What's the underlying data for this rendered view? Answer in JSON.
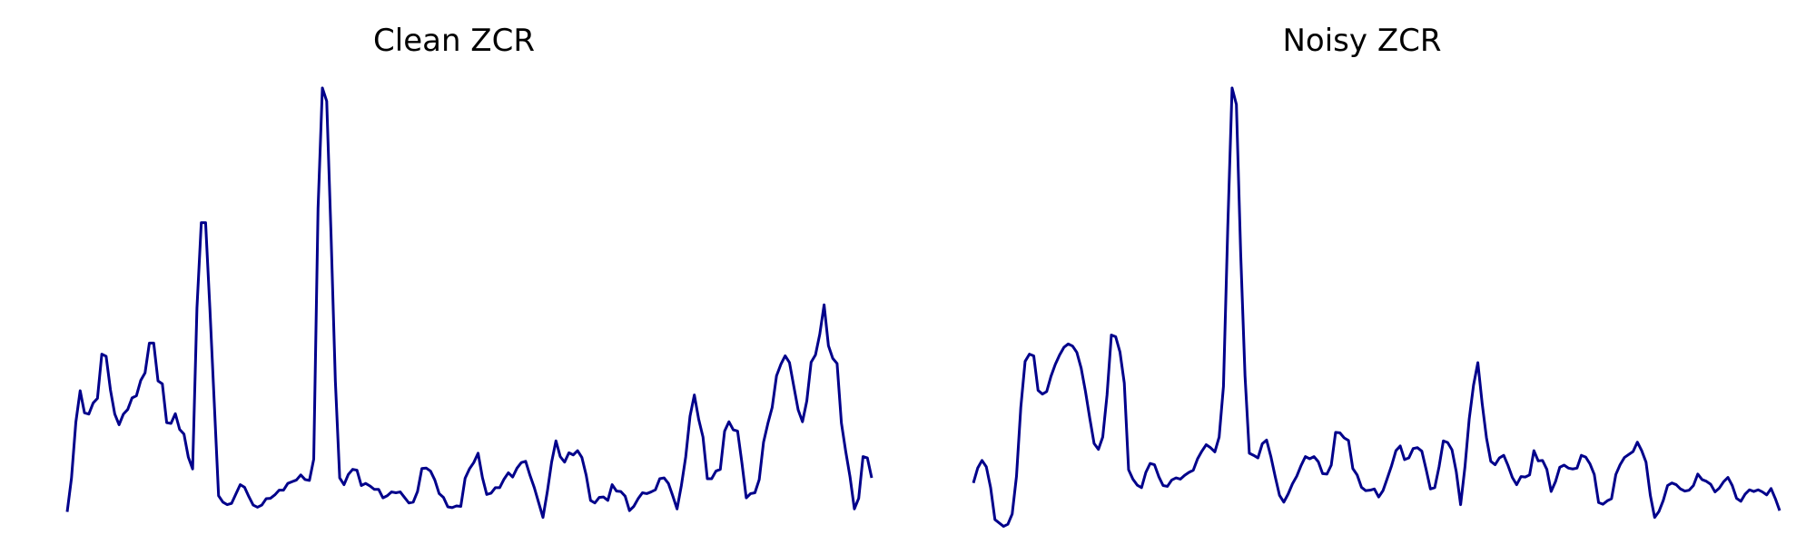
{
  "chart_data": [
    {
      "type": "line",
      "title": "Clean ZCR",
      "xlabel": "",
      "ylabel": "",
      "axes_visible": false,
      "grid": false,
      "ylim": [
        0,
        1
      ],
      "series": [
        {
          "color": "#00008B",
          "values": [
            0.003,
            0.083,
            0.214,
            0.288,
            0.236,
            0.233,
            0.259,
            0.27,
            0.374,
            0.369,
            0.29,
            0.233,
            0.208,
            0.233,
            0.244,
            0.271,
            0.276,
            0.312,
            0.33,
            0.4,
            0.4,
            0.311,
            0.304,
            0.213,
            0.211,
            0.234,
            0.197,
            0.186,
            0.132,
            0.104,
            0.482,
            0.683,
            0.683,
            0.48,
            0.26,
            0.041,
            0.026,
            0.02,
            0.023,
            0.045,
            0.067,
            0.061,
            0.039,
            0.019,
            0.014,
            0.019,
            0.034,
            0.035,
            0.043,
            0.054,
            0.054,
            0.07,
            0.074,
            0.078,
            0.09,
            0.079,
            0.077,
            0.127,
            0.717,
            1.0,
            0.969,
            0.656,
            0.311,
            0.083,
            0.067,
            0.091,
            0.103,
            0.101,
            0.065,
            0.07,
            0.064,
            0.056,
            0.056,
            0.036,
            0.041,
            0.05,
            0.048,
            0.05,
            0.037,
            0.024,
            0.026,
            0.051,
            0.105,
            0.106,
            0.099,
            0.078,
            0.046,
            0.037,
            0.015,
            0.013,
            0.017,
            0.016,
            0.082,
            0.104,
            0.119,
            0.141,
            0.084,
            0.044,
            0.047,
            0.06,
            0.06,
            0.08,
            0.095,
            0.085,
            0.106,
            0.119,
            0.122,
            0.089,
            0.06,
            0.025,
            -0.01,
            0.05,
            0.12,
            0.17,
            0.133,
            0.12,
            0.142,
            0.137,
            0.147,
            0.131,
            0.089,
            0.03,
            0.024,
            0.037,
            0.038,
            0.03,
            0.067,
            0.052,
            0.051,
            0.04,
            0.006,
            0.016,
            0.034,
            0.048,
            0.046,
            0.05,
            0.055,
            0.081,
            0.083,
            0.07,
            0.041,
            0.01,
            0.065,
            0.132,
            0.228,
            0.278,
            0.221,
            0.179,
            0.081,
            0.081,
            0.099,
            0.103,
            0.193,
            0.215,
            0.196,
            0.193,
            0.118,
            0.036,
            0.046,
            0.048,
            0.079,
            0.167,
            0.211,
            0.249,
            0.323,
            0.35,
            0.37,
            0.354,
            0.298,
            0.243,
            0.215,
            0.264,
            0.355,
            0.372,
            0.421,
            0.49,
            0.394,
            0.364,
            0.352,
            0.212,
            0.145,
            0.085,
            0.01,
            0.035,
            0.133,
            0.13,
            0.083
          ]
        }
      ]
    },
    {
      "type": "line",
      "title": "Noisy ZCR",
      "xlabel": "",
      "ylabel": "",
      "axes_visible": false,
      "grid": false,
      "ylim": [
        0,
        1
      ],
      "series": [
        {
          "color": "#00008B",
          "values": [
            0.071,
            0.106,
            0.124,
            0.109,
            0.06,
            -0.015,
            -0.023,
            -0.031,
            -0.026,
            -0.002,
            0.087,
            0.249,
            0.357,
            0.374,
            0.37,
            0.289,
            0.28,
            0.286,
            0.322,
            0.35,
            0.372,
            0.39,
            0.398,
            0.393,
            0.378,
            0.341,
            0.286,
            0.223,
            0.164,
            0.15,
            0.179,
            0.278,
            0.419,
            0.415,
            0.379,
            0.306,
            0.102,
            0.08,
            0.066,
            0.06,
            0.096,
            0.117,
            0.114,
            0.086,
            0.065,
            0.063,
            0.078,
            0.083,
            0.08,
            0.089,
            0.096,
            0.101,
            0.128,
            0.146,
            0.161,
            0.154,
            0.144,
            0.179,
            0.298,
            0.672,
            1.0,
            0.961,
            0.609,
            0.323,
            0.141,
            0.136,
            0.13,
            0.163,
            0.172,
            0.133,
            0.086,
            0.042,
            0.026,
            0.045,
            0.069,
            0.087,
            0.112,
            0.133,
            0.128,
            0.133,
            0.121,
            0.093,
            0.092,
            0.113,
            0.19,
            0.189,
            0.177,
            0.171,
            0.105,
            0.09,
            0.061,
            0.053,
            0.054,
            0.057,
            0.038,
            0.053,
            0.082,
            0.112,
            0.147,
            0.158,
            0.126,
            0.13,
            0.152,
            0.154,
            0.146,
            0.103,
            0.057,
            0.06,
            0.109,
            0.17,
            0.166,
            0.149,
            0.097,
            0.02,
            0.108,
            0.222,
            0.301,
            0.354,
            0.258,
            0.177,
            0.122,
            0.114,
            0.13,
            0.136,
            0.112,
            0.084,
            0.067,
            0.086,
            0.085,
            0.09,
            0.147,
            0.123,
            0.124,
            0.103,
            0.051,
            0.074,
            0.108,
            0.113,
            0.106,
            0.104,
            0.106,
            0.136,
            0.132,
            0.116,
            0.091,
            0.025,
            0.021,
            0.029,
            0.034,
            0.091,
            0.114,
            0.131,
            0.138,
            0.145,
            0.167,
            0.147,
            0.12,
            0.042,
            -0.01,
            0.004,
            0.03,
            0.065,
            0.071,
            0.067,
            0.057,
            0.052,
            0.054,
            0.065,
            0.092,
            0.079,
            0.075,
            0.068,
            0.05,
            0.059,
            0.074,
            0.084,
            0.065,
            0.035,
            0.028,
            0.045,
            0.055,
            0.051,
            0.055,
            0.05,
            0.043,
            0.058,
            0.034,
            0.006
          ]
        }
      ]
    }
  ]
}
